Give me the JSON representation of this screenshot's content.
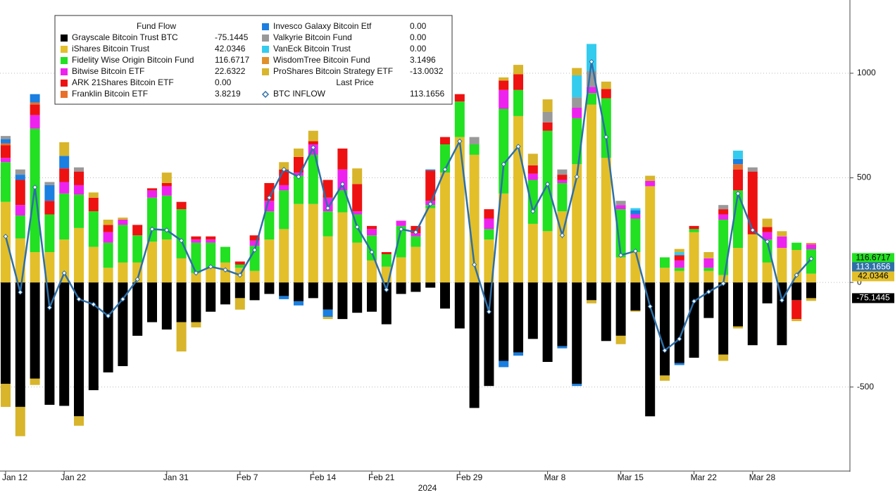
{
  "chart_data": {
    "type": "bar",
    "legend_title": "Fund Flow",
    "legend_line_title": "Last Price",
    "xlabel": "2024",
    "categories": [
      "Jan 12",
      null,
      null,
      null,
      "Jan 22",
      null,
      null,
      null,
      null,
      null,
      null,
      "Jan 31",
      null,
      null,
      null,
      null,
      "Feb 7",
      null,
      null,
      null,
      null,
      "Feb 14",
      null,
      null,
      null,
      "Feb 21",
      null,
      null,
      null,
      null,
      null,
      "Feb 29",
      null,
      null,
      null,
      null,
      null,
      "Mar 8",
      null,
      null,
      null,
      null,
      "Mar 15",
      null,
      null,
      null,
      null,
      "Mar 22",
      null,
      null,
      null,
      "Mar 28",
      null,
      null,
      null,
      null
    ],
    "ylim": [
      -905,
      1350
    ],
    "yticks": [
      -500,
      0,
      500,
      1000
    ],
    "grid": true,
    "series": [
      {
        "name": "Grayscale Bitcoin Trust BTC",
        "color": "#000000",
        "last_label": "-75.1445",
        "end_label": true,
        "values": [
          -485,
          -595,
          -460,
          -585,
          -590,
          -640,
          -515,
          -430,
          -400,
          -255,
          -190,
          -225,
          -190,
          -190,
          -140,
          -105,
          -75,
          -85,
          -55,
          -65,
          -90,
          -75,
          -130,
          -175,
          -145,
          -140,
          -200,
          -55,
          -45,
          -25,
          -125,
          -220,
          -600,
          -495,
          -375,
          -335,
          -270,
          -380,
          -305,
          -485,
          -85,
          -280,
          -255,
          -135,
          -640,
          -445,
          -385,
          -360,
          -170,
          -345,
          -210,
          -300,
          -100,
          -300,
          -85,
          -75.1445
        ]
      },
      {
        "name": "iShares Bitcoin Trust",
        "color": "#e3bf2a",
        "last_label": "42.0346",
        "end_label": true,
        "values": [
          385,
          210,
          145,
          145,
          205,
          260,
          170,
          70,
          95,
          95,
          195,
          205,
          115,
          45,
          70,
          95,
          70,
          55,
          205,
          255,
          375,
          375,
          220,
          335,
          190,
          105,
          75,
          120,
          170,
          355,
          525,
          695,
          610,
          205,
          425,
          795,
          280,
          245,
          340,
          565,
          850,
          595,
          120,
          145,
          460,
          70,
          55,
          240,
          55,
          35,
          165,
          230,
          95,
          165,
          155,
          42.0346
        ]
      },
      {
        "name": "Fidelity Wise Origin Bitcoin Fund",
        "color": "#22e022",
        "last_label": "116.6717",
        "end_label": true,
        "values": [
          190,
          110,
          590,
          180,
          220,
          160,
          170,
          120,
          180,
          130,
          210,
          210,
          235,
          145,
          120,
          75,
          15,
          120,
          135,
          185,
          135,
          235,
          120,
          105,
          135,
          120,
          60,
          150,
          50,
          15,
          135,
          170,
          50,
          50,
          405,
          125,
          210,
          480,
          135,
          220,
          55,
          285,
          230,
          160,
          0,
          50,
          15,
          15,
          15,
          265,
          275,
          0,
          110,
          0,
          35,
          116.6717
        ]
      },
      {
        "name": "Bitwise Bitcoin ETF",
        "color": "#ee22ee",
        "last_label": "22.6322",
        "values": [
          20,
          50,
          65,
          0,
          55,
          45,
          0,
          50,
          25,
          0,
          35,
          45,
          0,
          15,
          15,
          0,
          0,
          25,
          50,
          25,
          15,
          50,
          65,
          100,
          15,
          30,
          0,
          25,
          15,
          20,
          0,
          0,
          0,
          50,
          90,
          0,
          30,
          0,
          15,
          50,
          30,
          0,
          20,
          20,
          25,
          0,
          35,
          0,
          45,
          25,
          0,
          0,
          35,
          55,
          0,
          22.6322
        ]
      },
      {
        "name": "ARK 21Shares Bitcoin ETF",
        "color": "#ee1111",
        "last_label": "0.00",
        "values": [
          60,
          120,
          50,
          65,
          65,
          65,
          65,
          35,
          0,
          50,
          10,
          15,
          35,
          15,
          15,
          0,
          15,
          25,
          85,
          75,
          75,
          15,
          85,
          100,
          130,
          15,
          10,
          0,
          35,
          145,
          35,
          35,
          0,
          45,
          45,
          75,
          40,
          40,
          25,
          0,
          0,
          45,
          0,
          0,
          0,
          0,
          25,
          15,
          0,
          25,
          100,
          300,
          25,
          0,
          -90,
          0
        ]
      },
      {
        "name": "Franklin Bitcoin ETF",
        "color": "#e8702a",
        "last_label": "3.8219",
        "values": [
          10,
          0,
          10,
          0,
          0,
          0,
          0,
          0,
          0,
          0,
          0,
          0,
          0,
          0,
          0,
          0,
          0,
          0,
          0,
          0,
          0,
          0,
          0,
          0,
          0,
          0,
          0,
          0,
          0,
          0,
          0,
          0,
          0,
          0,
          0,
          0,
          0,
          0,
          0,
          0,
          0,
          0,
          0,
          0,
          0,
          0,
          0,
          0,
          0,
          0,
          25,
          0,
          0,
          0,
          0,
          3.8219
        ]
      },
      {
        "name": "Invesco Galaxy Bitcoin Etf",
        "color": "#1a7fe0",
        "last_label": "0.00",
        "values": [
          20,
          25,
          40,
          75,
          60,
          0,
          0,
          0,
          0,
          0,
          0,
          0,
          0,
          0,
          0,
          0,
          0,
          0,
          0,
          -15,
          -20,
          0,
          -35,
          0,
          0,
          0,
          0,
          0,
          0,
          5,
          0,
          0,
          0,
          0,
          -30,
          -15,
          0,
          0,
          -10,
          -10,
          0,
          0,
          0,
          20,
          0,
          0,
          -10,
          0,
          0,
          0,
          25,
          0,
          0,
          0,
          0,
          0
        ]
      },
      {
        "name": "Valkyrie Bitcoin Fund",
        "color": "#999999",
        "last_label": "0.00",
        "values": [
          15,
          25,
          0,
          15,
          0,
          20,
          0,
          0,
          0,
          0,
          0,
          0,
          0,
          0,
          0,
          0,
          0,
          0,
          0,
          0,
          0,
          0,
          0,
          0,
          0,
          0,
          0,
          0,
          0,
          0,
          0,
          0,
          35,
          0,
          0,
          0,
          0,
          50,
          25,
          50,
          75,
          0,
          20,
          0,
          0,
          0,
          0,
          0,
          0,
          20,
          0,
          20,
          0,
          0,
          0,
          0
        ]
      },
      {
        "name": "VanEck Bitcoin Trust",
        "color": "#33ccee",
        "last_label": "0.00",
        "values": [
          0,
          0,
          0,
          0,
          0,
          0,
          0,
          0,
          0,
          0,
          0,
          0,
          0,
          0,
          0,
          0,
          0,
          0,
          0,
          0,
          0,
          0,
          0,
          0,
          0,
          0,
          0,
          0,
          0,
          0,
          0,
          0,
          0,
          0,
          0,
          0,
          0,
          0,
          0,
          105,
          130,
          0,
          0,
          10,
          0,
          0,
          15,
          0,
          0,
          0,
          40,
          0,
          0,
          0,
          0,
          0
        ]
      },
      {
        "name": "WisdomTree Bitcoin Fund",
        "color": "#e0902a",
        "last_label": "3.1496",
        "values": [
          0,
          0,
          0,
          0,
          0,
          0,
          0,
          0,
          0,
          0,
          0,
          0,
          0,
          0,
          0,
          0,
          0,
          0,
          0,
          0,
          0,
          0,
          0,
          0,
          0,
          0,
          0,
          0,
          0,
          0,
          0,
          0,
          0,
          0,
          0,
          0,
          0,
          0,
          0,
          0,
          0,
          0,
          0,
          0,
          0,
          0,
          0,
          0,
          0,
          0,
          0,
          0,
          0,
          0,
          0,
          3.1496
        ]
      },
      {
        "name": "ProShares Bitcoin Strategy ETF",
        "color": "#d8b52a",
        "last_label": "-13.0032",
        "values": [
          -110,
          -140,
          -30,
          0,
          65,
          -45,
          25,
          25,
          10,
          0,
          0,
          50,
          -140,
          -25,
          0,
          0,
          -55,
          0,
          0,
          35,
          40,
          50,
          -10,
          0,
          75,
          0,
          0,
          0,
          0,
          0,
          0,
          0,
          0,
          0,
          15,
          45,
          55,
          60,
          0,
          35,
          -15,
          35,
          -40,
          -5,
          25,
          -25,
          15,
          0,
          30,
          -30,
          -10,
          0,
          40,
          25,
          -10,
          -13.0032
        ]
      },
      {
        "name": "BTC INFLOW",
        "color": "#2e6fa8",
        "kind": "line",
        "last_label": "113.1656",
        "end_label": true,
        "values": [
          220,
          -47,
          455,
          -120,
          45,
          -80,
          -105,
          -160,
          -80,
          15,
          255,
          250,
          200,
          45,
          75,
          60,
          35,
          155,
          405,
          540,
          505,
          645,
          355,
          470,
          265,
          145,
          -35,
          255,
          240,
          375,
          540,
          675,
          85,
          -140,
          565,
          650,
          340,
          470,
          225,
          505,
          1055,
          695,
          130,
          150,
          -115,
          -325,
          -270,
          -90,
          -45,
          -5,
          425,
          250,
          195,
          -85,
          35,
          113.1656
        ]
      }
    ]
  }
}
